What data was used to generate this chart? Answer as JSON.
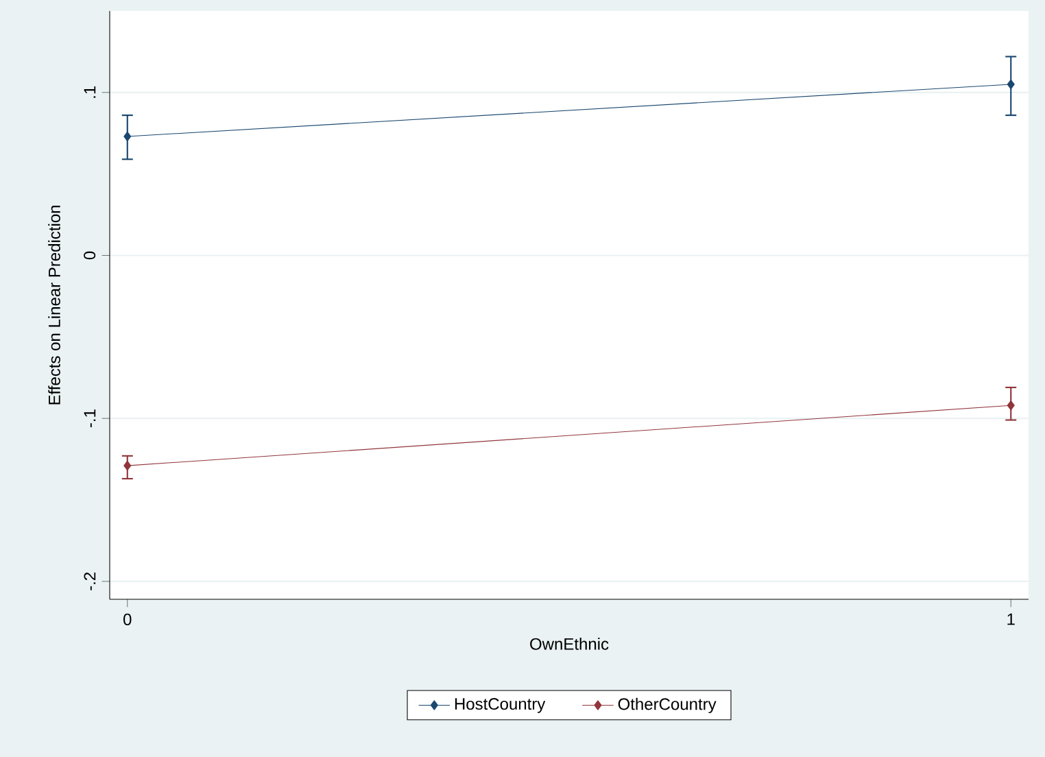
{
  "chart_data": {
    "type": "line",
    "xlabel": "OwnEthnic",
    "ylabel": "Effects on Linear Prediction",
    "x": [
      0,
      1
    ],
    "xlim": [
      -0.02,
      1.02
    ],
    "xticks": [
      0,
      1
    ],
    "ylim": [
      -0.211,
      0.15
    ],
    "yticks": [
      {
        "value": 0.1,
        "label": ".1"
      },
      {
        "value": 0,
        "label": "0"
      },
      {
        "value": -0.1,
        "label": "-.1"
      },
      {
        "value": -0.2,
        "label": "-.2"
      }
    ],
    "series": [
      {
        "name": "HostCountry",
        "color": "#1a476f",
        "values": [
          0.073,
          0.105
        ],
        "errors": [
          [
            0.059,
            0.086
          ],
          [
            0.086,
            0.122
          ]
        ]
      },
      {
        "name": "OtherCountry",
        "color": "#90353b",
        "values": [
          -0.129,
          -0.092
        ],
        "errors": [
          [
            -0.137,
            -0.123
          ],
          [
            -0.101,
            -0.081
          ]
        ]
      }
    ],
    "grid": "y",
    "legend": "bottom",
    "marker": "diamond",
    "line_style": "solid"
  }
}
